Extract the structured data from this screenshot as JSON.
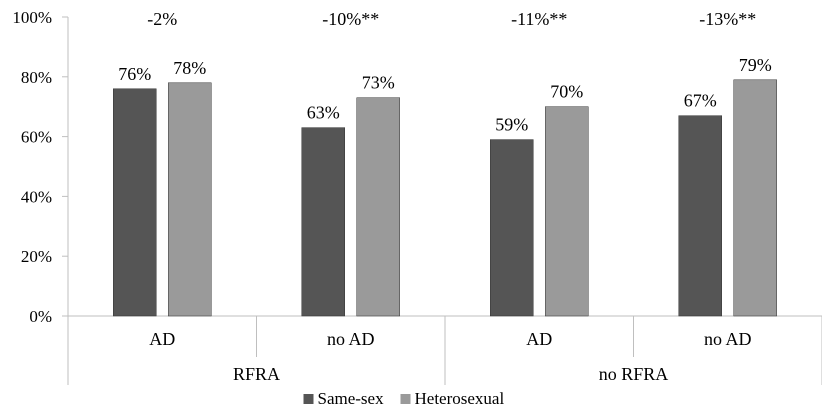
{
  "chart_data": {
    "type": "bar",
    "groups": [
      {
        "label": "RFRA",
        "categories": [
          "AD",
          "no AD"
        ]
      },
      {
        "label": "no RFRA",
        "categories": [
          "AD",
          "no AD"
        ]
      }
    ],
    "categories": [
      "AD",
      "no AD",
      "AD",
      "no AD"
    ],
    "series": [
      {
        "name": "Same-sex",
        "color": "#555555",
        "values": [
          76,
          63,
          59,
          67
        ],
        "labels": [
          "76%",
          "63%",
          "59%",
          "67%"
        ]
      },
      {
        "name": "Heterosexual",
        "color": "#9a9a9a",
        "values": [
          78,
          73,
          70,
          79
        ],
        "labels": [
          "78%",
          "73%",
          "70%",
          "79%"
        ]
      }
    ],
    "differences": [
      "-2%",
      "-10%**",
      "-11%**",
      "-13%**"
    ],
    "ylim": [
      0,
      100
    ],
    "yticks": [
      0,
      20,
      40,
      60,
      80,
      100
    ],
    "ytick_labels": [
      "0%",
      "20%",
      "40%",
      "60%",
      "80%",
      "100%"
    ],
    "legend_position": "bottom",
    "grid": false
  }
}
